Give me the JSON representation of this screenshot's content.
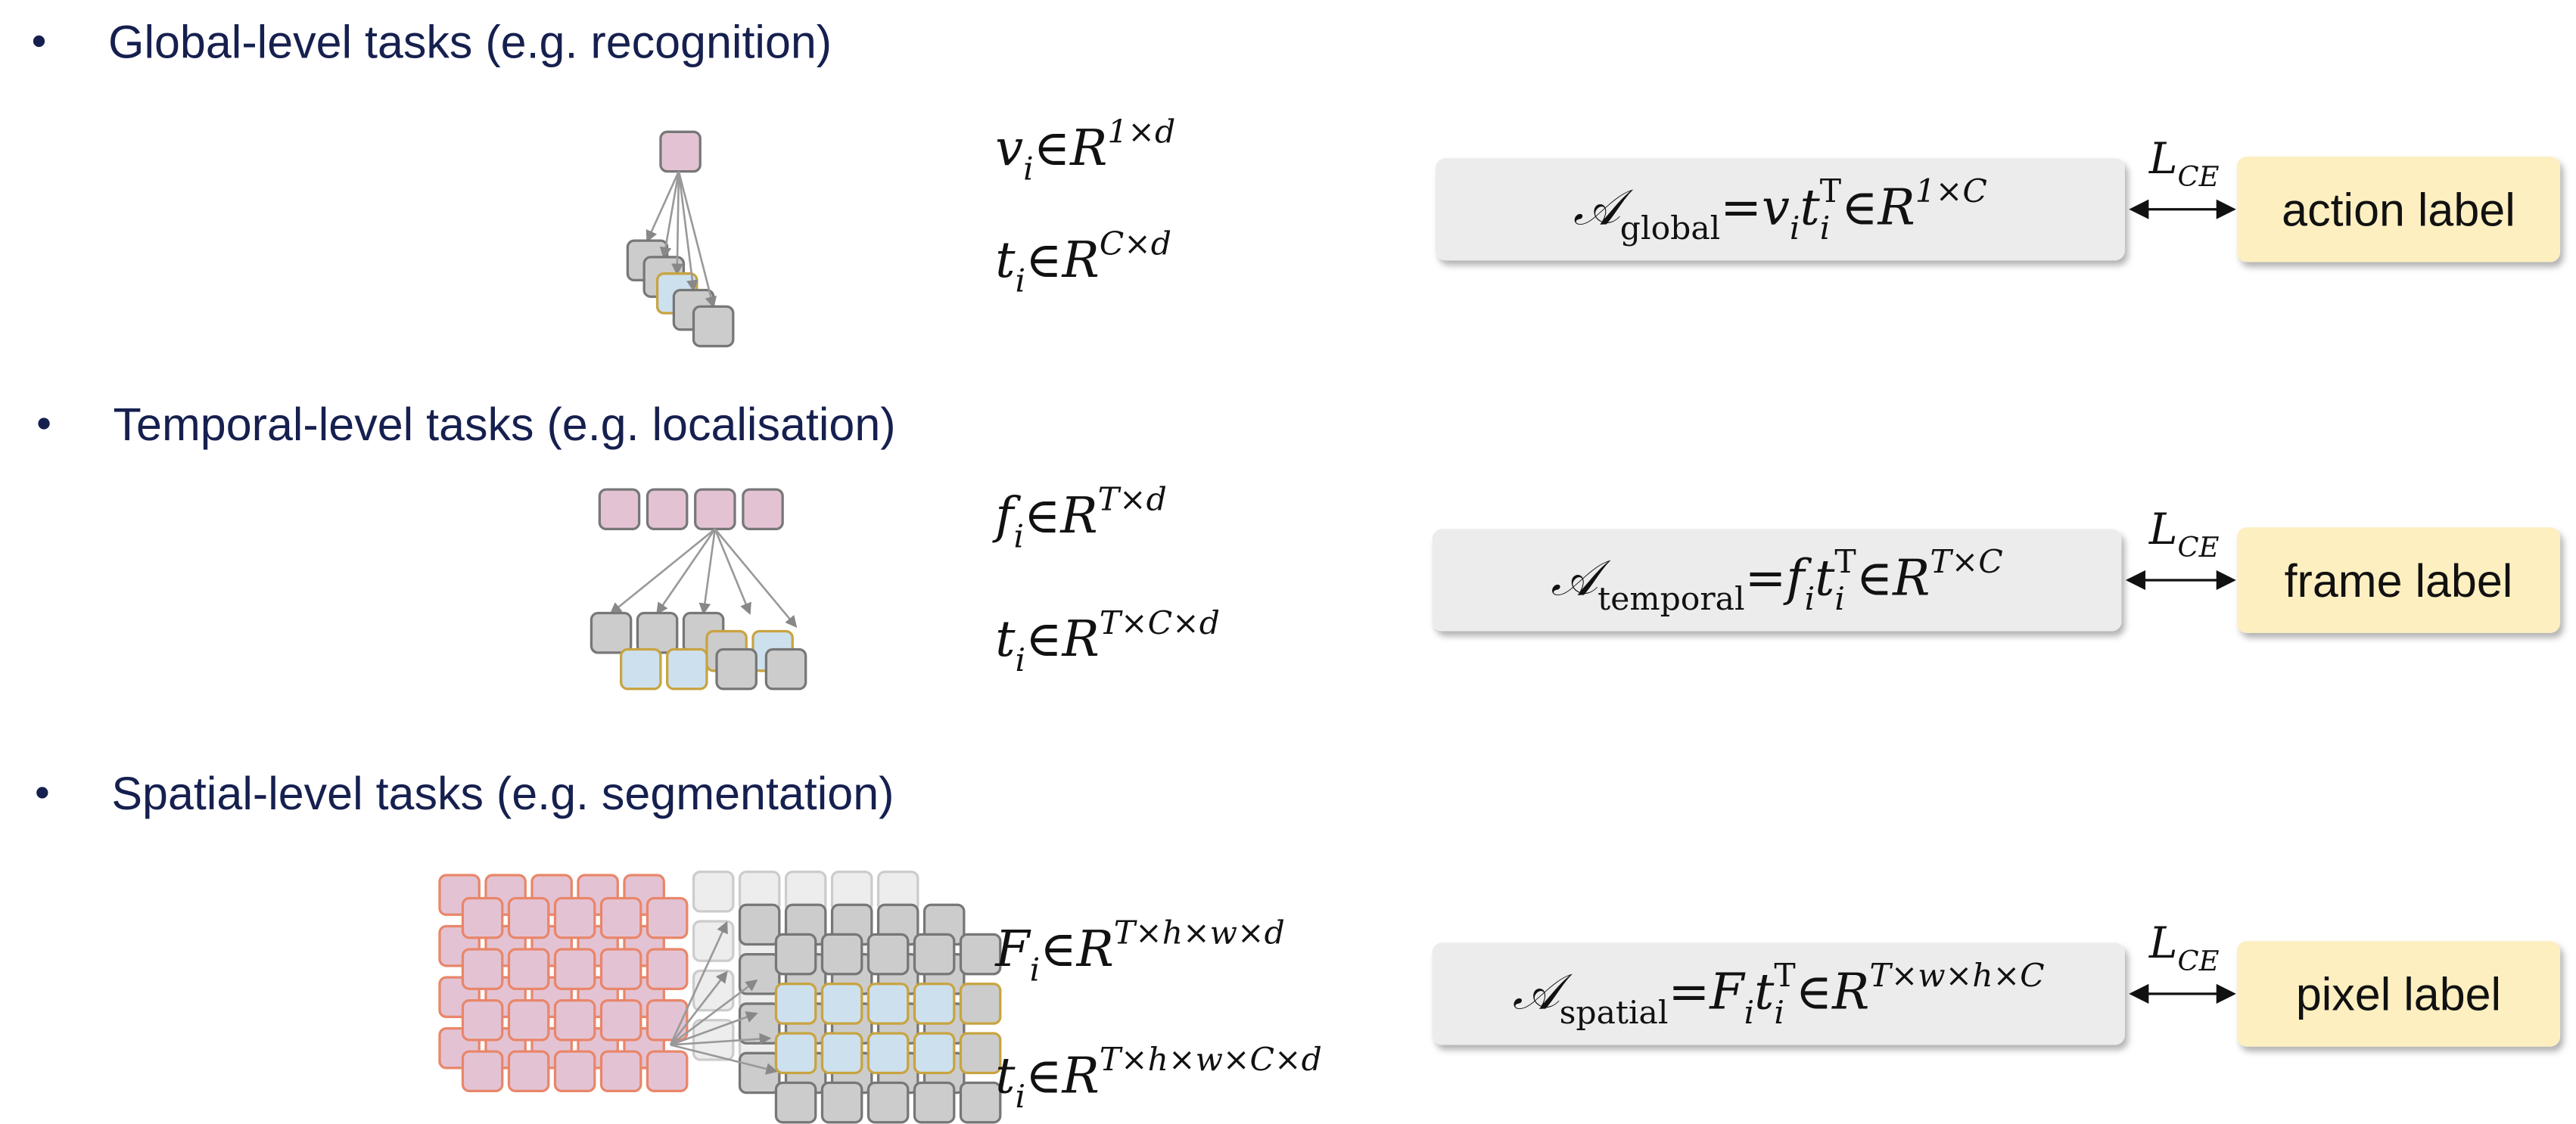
{
  "sections": [
    {
      "title": "Global-level tasks (e.g. recognition)",
      "vars": [
        [
          {
            "text": "v"
          },
          {
            "text": "i",
            "pos": "sub"
          },
          {
            "text": " ∈ "
          },
          {
            "text": "R"
          },
          {
            "text": "1×d",
            "pos": "sup"
          }
        ],
        [
          {
            "text": "t"
          },
          {
            "text": "i",
            "pos": "sub"
          },
          {
            "text": " ∈ "
          },
          {
            "text": "R"
          },
          {
            "text": "C×d",
            "pos": "sup"
          }
        ]
      ],
      "formula": [
        {
          "text": "𝒜"
        },
        {
          "text": "global",
          "pos": "sub",
          "upright": true
        },
        {
          "text": " = ",
          "upright": true
        },
        {
          "text": "v"
        },
        {
          "text": "i",
          "pos": "sub"
        },
        {
          "text": "t"
        },
        {
          "text": "i",
          "pos": "sub"
        },
        {
          "text": "T",
          "pos": "sup",
          "upright": true
        },
        {
          "text": " ∈ ",
          "upright": true
        },
        {
          "text": "R"
        },
        {
          "text": "1×C",
          "pos": "sup"
        }
      ],
      "loss": [
        {
          "text": "L"
        },
        {
          "text": "CE",
          "pos": "sub"
        }
      ],
      "label": "action label"
    },
    {
      "title": "Temporal-level tasks (e.g. localisation)",
      "vars": [
        [
          {
            "text": "f"
          },
          {
            "text": "i",
            "pos": "sub"
          },
          {
            "text": " ∈ "
          },
          {
            "text": "R"
          },
          {
            "text": "T×d",
            "pos": "sup"
          }
        ],
        [
          {
            "text": "t"
          },
          {
            "text": "i",
            "pos": "sub"
          },
          {
            "text": " ∈ "
          },
          {
            "text": "R"
          },
          {
            "text": "T×C×d",
            "pos": "sup"
          }
        ]
      ],
      "formula": [
        {
          "text": "𝒜"
        },
        {
          "text": "temporal",
          "pos": "sub",
          "upright": true
        },
        {
          "text": " = ",
          "upright": true
        },
        {
          "text": "f"
        },
        {
          "text": "i",
          "pos": "sub"
        },
        {
          "text": "t"
        },
        {
          "text": "i",
          "pos": "sub"
        },
        {
          "text": "T",
          "pos": "sup",
          "upright": true
        },
        {
          "text": " ∈ ",
          "upright": true
        },
        {
          "text": "R"
        },
        {
          "text": "T×C",
          "pos": "sup"
        }
      ],
      "loss": [
        {
          "text": "L"
        },
        {
          "text": "CE",
          "pos": "sub"
        }
      ],
      "label": "frame label"
    },
    {
      "title": "Spatial-level tasks (e.g. segmentation)",
      "vars": [
        [
          {
            "text": "F"
          },
          {
            "text": "i",
            "pos": "sub"
          },
          {
            "text": " ∈ "
          },
          {
            "text": "R"
          },
          {
            "text": "T×h×w×d",
            "pos": "sup"
          }
        ],
        [
          {
            "text": "t"
          },
          {
            "text": "i",
            "pos": "sub"
          },
          {
            "text": " ∈ "
          },
          {
            "text": "R"
          },
          {
            "text": "T×h×w×C×d",
            "pos": "sup"
          }
        ]
      ],
      "formula": [
        {
          "text": "𝒜"
        },
        {
          "text": "spatial",
          "pos": "sub",
          "upright": true
        },
        {
          "text": " = ",
          "upright": true
        },
        {
          "text": "F"
        },
        {
          "text": "i",
          "pos": "sub"
        },
        {
          "text": "t"
        },
        {
          "text": "i",
          "pos": "sub"
        },
        {
          "text": "T",
          "pos": "sup",
          "upright": true
        },
        {
          "text": " ∈ ",
          "upright": true
        },
        {
          "text": "R"
        },
        {
          "text": "T×w×h×C",
          "pos": "sup"
        }
      ],
      "loss": [
        {
          "text": "L"
        },
        {
          "text": "CE",
          "pos": "sub"
        }
      ],
      "label": "pixel label"
    }
  ]
}
